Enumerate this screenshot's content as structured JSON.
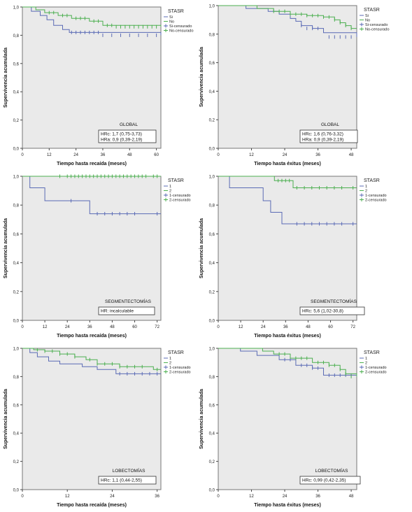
{
  "colors": {
    "series1": "#5b6bb5",
    "series2": "#4caf50",
    "plot_bg": "#eaeaea",
    "frame": "#777777"
  },
  "chart_data": [
    {
      "type": "line",
      "step": true,
      "group": "GLOBAL",
      "xlabel": "Tiempo hasta recaída (meses)",
      "ylabel": "Supervivencia acumulada",
      "xlim": [
        0,
        62
      ],
      "ylim": [
        0,
        1.0
      ],
      "x_ticks": [
        "0",
        "12",
        "24",
        "36",
        "48",
        "60"
      ],
      "y_ticks": [
        "0,0",
        "0,2",
        "0,4",
        "0,6",
        "0,8",
        "1,0"
      ],
      "legend_title": "STASR",
      "legend": [
        "Si",
        "No",
        "Si-censurado",
        "No-censurado"
      ],
      "hr_lines": [
        "HRc: 1,7 (0,75-3,73)",
        "HRa: 0,9 (0,39-2,19)"
      ],
      "series": [
        {
          "name": "Si",
          "x": [
            0,
            4,
            8,
            11,
            14,
            18,
            21,
            62
          ],
          "y": [
            1.0,
            0.97,
            0.94,
            0.91,
            0.87,
            0.84,
            0.82,
            0.8
          ],
          "censored": {
            "x": [
              22,
              24,
              26,
              28,
              30,
              32,
              34,
              36,
              40,
              44,
              48,
              52,
              56,
              60
            ],
            "y": [
              0.82,
              0.82,
              0.82,
              0.82,
              0.82,
              0.82,
              0.82,
              0.8,
              0.8,
              0.8,
              0.8,
              0.8,
              0.8,
              0.8
            ]
          }
        },
        {
          "name": "No",
          "x": [
            0,
            6,
            10,
            16,
            22,
            30,
            36,
            62
          ],
          "y": [
            1.0,
            0.98,
            0.96,
            0.94,
            0.92,
            0.9,
            0.87,
            0.86
          ],
          "censored": {
            "x": [
              12,
              14,
              18,
              20,
              24,
              26,
              28,
              32,
              34,
              38,
              40,
              42,
              44,
              46,
              48,
              50,
              52,
              54,
              56,
              58,
              60
            ],
            "y": [
              0.96,
              0.96,
              0.94,
              0.94,
              0.92,
              0.92,
              0.92,
              0.9,
              0.9,
              0.87,
              0.87,
              0.86,
              0.86,
              0.86,
              0.86,
              0.86,
              0.86,
              0.86,
              0.86,
              0.86,
              0.86
            ]
          }
        }
      ]
    },
    {
      "type": "line",
      "step": true,
      "group": "GLOBAL",
      "xlabel": "Tiempo hasta éxitus (meses)",
      "ylabel": "Supervivencia acumulada",
      "xlim": [
        0,
        50
      ],
      "ylim": [
        0,
        1.0
      ],
      "x_ticks": [
        "0",
        "12",
        "24",
        "36",
        "48"
      ],
      "y_ticks": [
        "0,0",
        "0,2",
        "0,4",
        "0,6",
        "0,8",
        "1,0"
      ],
      "legend_title": "STASR",
      "legend": [
        "Si",
        "No",
        "Si-censurado",
        "No-censurado"
      ],
      "hr_lines": [
        "HRc: 1,6 (0,76-3,32)",
        "HRa: 0,9 (0,39-2,19)"
      ],
      "series": [
        {
          "name": "Si",
          "x": [
            0,
            10,
            18,
            22,
            26,
            28,
            30,
            34,
            38,
            50
          ],
          "y": [
            1.0,
            0.98,
            0.96,
            0.94,
            0.91,
            0.89,
            0.86,
            0.84,
            0.81,
            0.78
          ],
          "censored": {
            "x": [
              30,
              32,
              34,
              36,
              40,
              42,
              44,
              46,
              48
            ],
            "y": [
              0.86,
              0.84,
              0.84,
              0.84,
              0.78,
              0.78,
              0.78,
              0.78,
              0.78
            ]
          }
        },
        {
          "name": "No",
          "x": [
            0,
            14,
            20,
            26,
            32,
            38,
            42,
            44,
            46,
            48,
            50
          ],
          "y": [
            1.0,
            0.98,
            0.96,
            0.94,
            0.93,
            0.92,
            0.9,
            0.88,
            0.86,
            0.84,
            0.84
          ],
          "censored": {
            "x": [
              20,
              22,
              24,
              26,
              28,
              30,
              32,
              34,
              36,
              38,
              40,
              42,
              44,
              46,
              48
            ],
            "y": [
              0.96,
              0.96,
              0.96,
              0.94,
              0.94,
              0.94,
              0.93,
              0.93,
              0.93,
              0.92,
              0.92,
              0.9,
              0.88,
              0.86,
              0.84
            ]
          }
        }
      ]
    },
    {
      "type": "line",
      "step": true,
      "group": "SEGMENTECTOMÍAS",
      "xlabel": "Tiempo hasta recaída (meses)",
      "ylabel": "Supervivencia acumulada",
      "xlim": [
        0,
        74
      ],
      "ylim": [
        0,
        1.0
      ],
      "x_ticks": [
        "0",
        "12",
        "24",
        "36",
        "48",
        "60",
        "72"
      ],
      "y_ticks": [
        "0,0",
        "0,2",
        "0,4",
        "0,6",
        "0,8",
        "1,0"
      ],
      "legend_title": "STASR",
      "legend": [
        "1",
        "2",
        "1-censurado",
        "2-censurado"
      ],
      "hr_lines": [
        "HR: incalculable"
      ],
      "series": [
        {
          "name": "1",
          "x": [
            0,
            4,
            12,
            36,
            74
          ],
          "y": [
            1.0,
            0.92,
            0.83,
            0.74,
            0.74
          ],
          "censored": {
            "x": [
              26,
              40,
              44,
              48,
              52,
              56,
              60,
              72
            ],
            "y": [
              0.83,
              0.74,
              0.74,
              0.74,
              0.74,
              0.74,
              0.74,
              0.74
            ]
          }
        },
        {
          "name": "2",
          "x": [
            0,
            74
          ],
          "y": [
            1.0,
            1.0
          ],
          "censored": {
            "x": [
              20,
              24,
              26,
              28,
              30,
              32,
              34,
              36,
              38,
              40,
              42,
              44,
              46,
              48,
              50,
              52,
              54,
              56,
              58,
              60,
              62,
              64,
              66,
              70,
              72
            ],
            "y": [
              1,
              1,
              1,
              1,
              1,
              1,
              1,
              1,
              1,
              1,
              1,
              1,
              1,
              1,
              1,
              1,
              1,
              1,
              1,
              1,
              1,
              1,
              1,
              1,
              1
            ]
          }
        }
      ]
    },
    {
      "type": "line",
      "step": true,
      "group": "SEGMENTECTOMÍAS",
      "xlabel": "Tiempo hasta éxitus (meses)",
      "ylabel": "Supervivencia acumulada",
      "xlim": [
        0,
        74
      ],
      "ylim": [
        0,
        1.0
      ],
      "x_ticks": [
        "0",
        "12",
        "24",
        "36",
        "48",
        "60",
        "72"
      ],
      "y_ticks": [
        "0,0",
        "0,2",
        "0,4",
        "0,6",
        "0,8",
        "1,0"
      ],
      "legend_title": "STASR",
      "legend": [
        "1",
        "2",
        "1-censurado",
        "2-censurado"
      ],
      "hr_lines": [
        "HRc: 5,6 (1,02-30,8)"
      ],
      "series": [
        {
          "name": "1",
          "x": [
            0,
            6,
            24,
            28,
            34,
            40,
            74
          ],
          "y": [
            1.0,
            0.92,
            0.83,
            0.75,
            0.67,
            0.67,
            0.67
          ],
          "censored": {
            "x": [
              42,
              46,
              50,
              54,
              58,
              62,
              66,
              72
            ],
            "y": [
              0.67,
              0.67,
              0.67,
              0.67,
              0.67,
              0.67,
              0.67,
              0.67
            ]
          }
        },
        {
          "name": "2",
          "x": [
            0,
            30,
            40,
            74
          ],
          "y": [
            1.0,
            0.97,
            0.92,
            0.92
          ],
          "censored": {
            "x": [
              32,
              34,
              36,
              38,
              42,
              46,
              50,
              54,
              58,
              62,
              66,
              72
            ],
            "y": [
              0.97,
              0.97,
              0.97,
              0.97,
              0.92,
              0.92,
              0.92,
              0.92,
              0.92,
              0.92,
              0.92,
              0.92
            ]
          }
        }
      ]
    },
    {
      "type": "line",
      "step": true,
      "group": "LOBECTOMÍAS",
      "xlabel": "Tiempo hasta recaída (meses)",
      "ylabel": "Supervivencia acumulada",
      "xlim": [
        0,
        37
      ],
      "ylim": [
        0,
        1.0
      ],
      "x_ticks": [
        "0",
        "12",
        "24",
        "36"
      ],
      "y_ticks": [
        "0,0",
        "0,2",
        "0,4",
        "0,6",
        "0,8",
        "1,0"
      ],
      "legend_title": "STASR",
      "legend": [
        "1",
        "2",
        "1-censurado",
        "2-censurado"
      ],
      "hr_lines": [
        "HRc: 1,1 (0,44-2,55)"
      ],
      "series": [
        {
          "name": "1",
          "x": [
            0,
            2,
            4,
            7,
            10,
            16,
            20,
            25,
            37
          ],
          "y": [
            1.0,
            0.97,
            0.94,
            0.91,
            0.89,
            0.87,
            0.85,
            0.82,
            0.82
          ],
          "censored": {
            "x": [
              26,
              28,
              30,
              32,
              34,
              36
            ],
            "y": [
              0.82,
              0.82,
              0.82,
              0.82,
              0.82,
              0.82
            ]
          }
        },
        {
          "name": "2",
          "x": [
            0,
            3,
            6,
            10,
            14,
            17,
            20,
            26,
            35,
            37
          ],
          "y": [
            1.0,
            0.99,
            0.98,
            0.96,
            0.94,
            0.92,
            0.89,
            0.87,
            0.85,
            0.85
          ],
          "censored": {
            "x": [
              4,
              6,
              8,
              10,
              12,
              14,
              18,
              20,
              22,
              24,
              26,
              28,
              30,
              32,
              36
            ],
            "y": [
              0.99,
              0.98,
              0.98,
              0.96,
              0.96,
              0.94,
              0.92,
              0.89,
              0.89,
              0.89,
              0.87,
              0.87,
              0.87,
              0.87,
              0.85
            ]
          }
        }
      ]
    },
    {
      "type": "line",
      "step": true,
      "group": "LOBECTOMÍAS",
      "xlabel": "Tiempo hasta éxitus (meses)",
      "ylabel": "Supervivencia acumulada",
      "xlim": [
        0,
        50
      ],
      "ylim": [
        0,
        1.0
      ],
      "x_ticks": [
        "0",
        "12",
        "24",
        "36",
        "48"
      ],
      "y_ticks": [
        "0,0",
        "0,2",
        "0,4",
        "0,6",
        "0,8",
        "1,0"
      ],
      "legend_title": "STASR",
      "legend": [
        "1",
        "2",
        "1-censurado",
        "2-censurado"
      ],
      "hr_lines": [
        "HRc: 0,99 (0,42-2,35)"
      ],
      "series": [
        {
          "name": "1",
          "x": [
            0,
            8,
            14,
            22,
            28,
            34,
            38,
            50
          ],
          "y": [
            1.0,
            0.98,
            0.95,
            0.92,
            0.88,
            0.86,
            0.81,
            0.81
          ],
          "censored": {
            "x": [
              24,
              26,
              30,
              32,
              34,
              36,
              40,
              42,
              44,
              46,
              48
            ],
            "y": [
              0.92,
              0.92,
              0.88,
              0.88,
              0.86,
              0.86,
              0.81,
              0.81,
              0.81,
              0.81,
              0.81
            ]
          }
        },
        {
          "name": "2",
          "x": [
            0,
            16,
            20,
            26,
            34,
            40,
            44,
            46,
            50
          ],
          "y": [
            1.0,
            0.98,
            0.96,
            0.93,
            0.9,
            0.88,
            0.85,
            0.82,
            0.8
          ],
          "censored": {
            "x": [
              22,
              24,
              28,
              30,
              32,
              36,
              38,
              40,
              42,
              44,
              46,
              48
            ],
            "y": [
              0.96,
              0.96,
              0.93,
              0.93,
              0.93,
              0.9,
              0.9,
              0.88,
              0.88,
              0.85,
              0.82,
              0.8
            ]
          }
        }
      ]
    }
  ]
}
